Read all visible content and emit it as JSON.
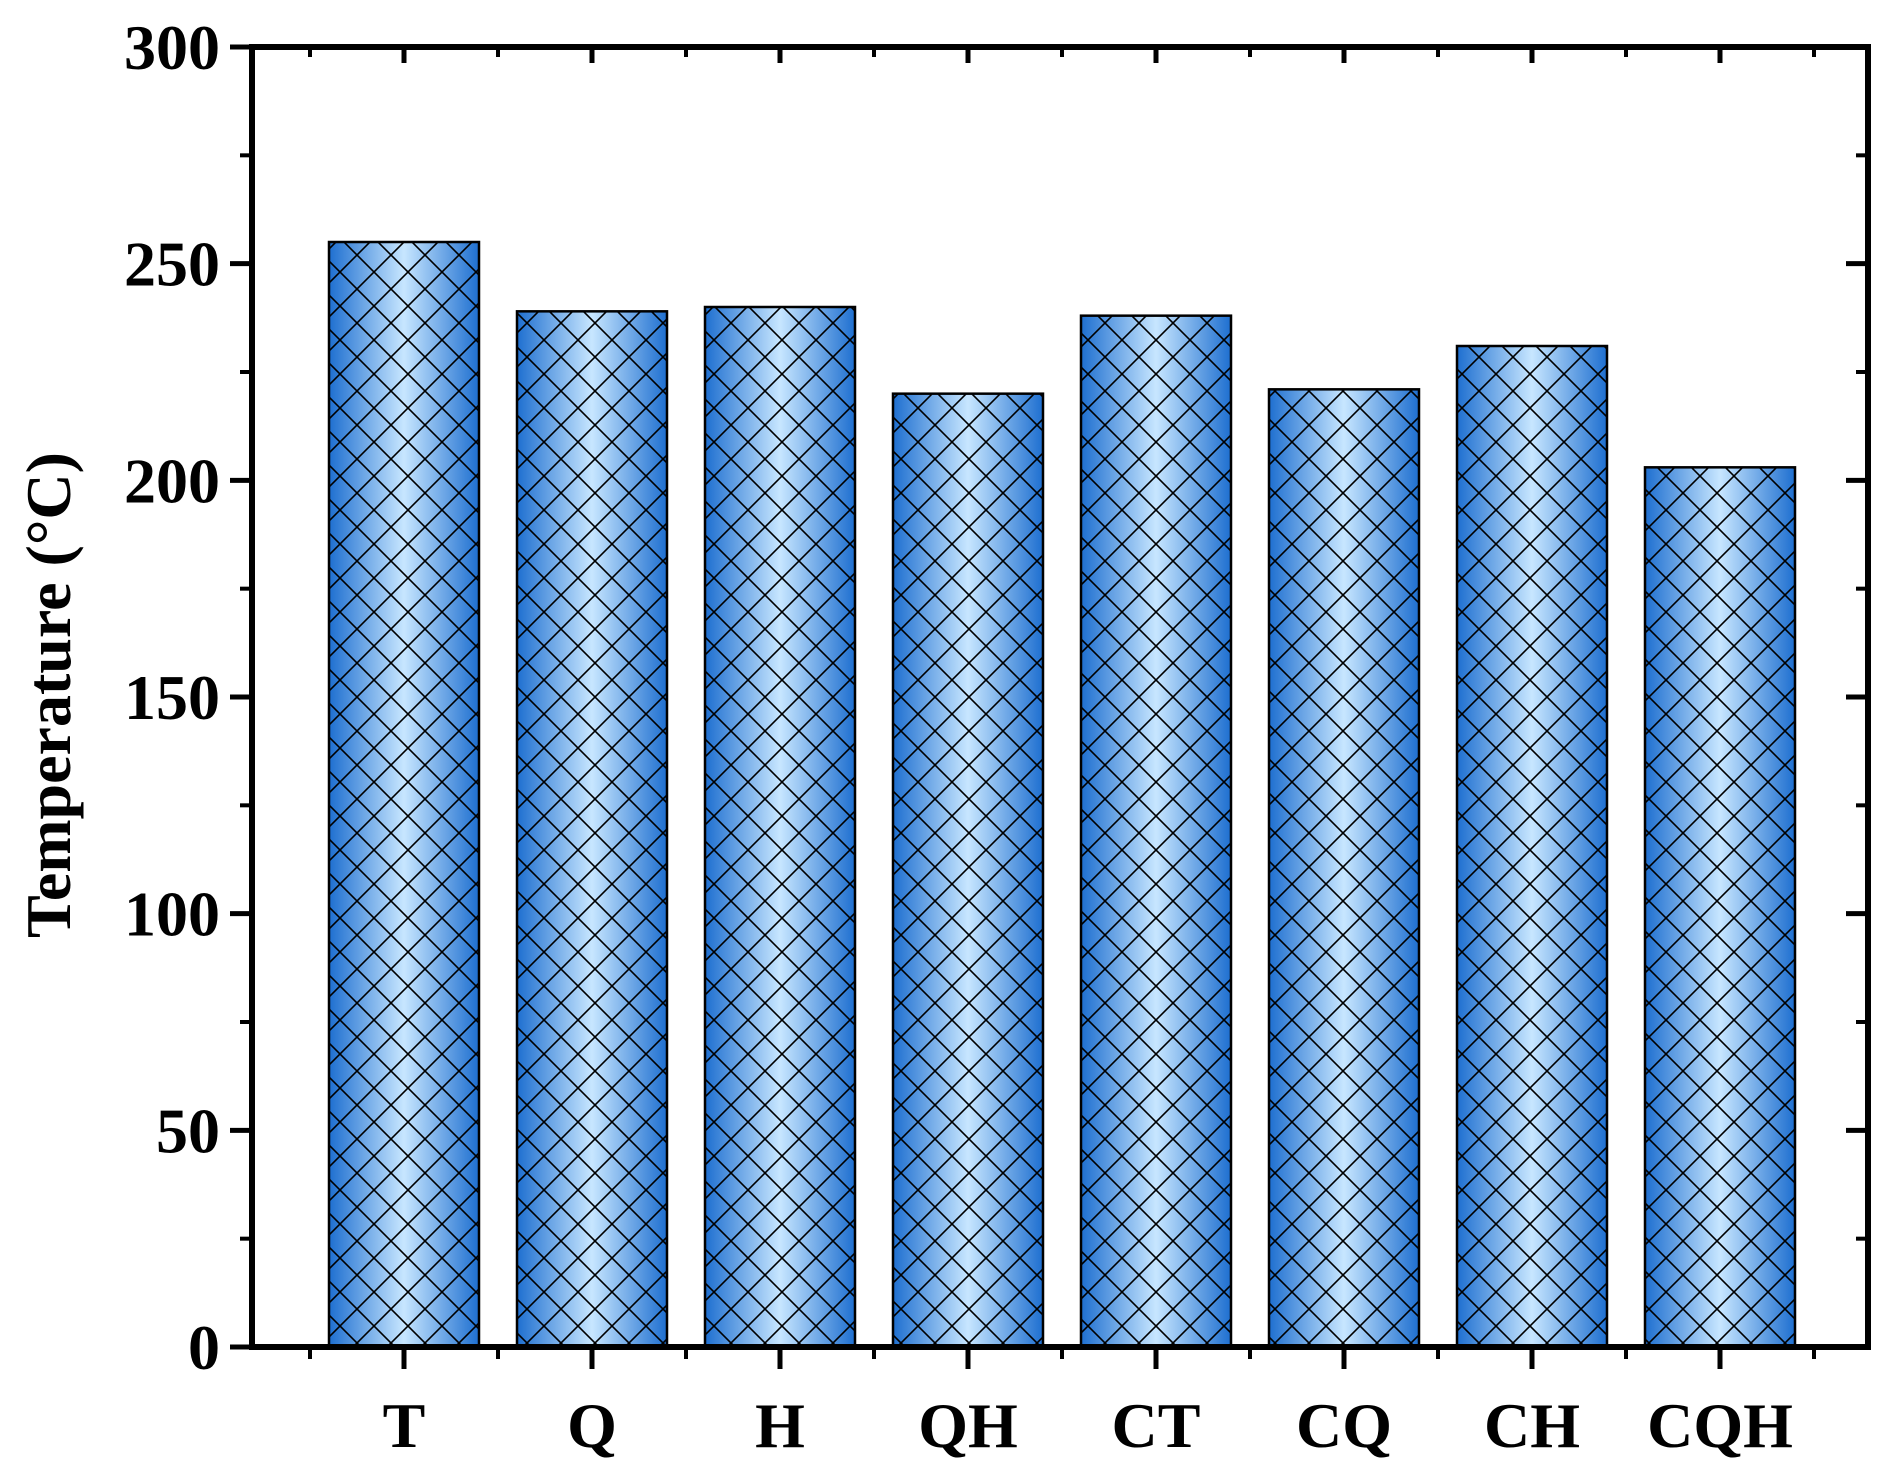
{
  "chart_data": {
    "type": "bar",
    "title": "",
    "xlabel": "",
    "ylabel": "Temperature (°C)",
    "categories": [
      "T",
      "Q",
      "H",
      "QH",
      "CT",
      "CQ",
      "CH",
      "CQH"
    ],
    "values": [
      255,
      239,
      240,
      220,
      238,
      221,
      231,
      203
    ],
    "ylim": [
      0,
      300
    ],
    "yticks": [
      "0",
      "50",
      "100",
      "150",
      "200",
      "250",
      "300"
    ],
    "grid": false,
    "legend": "none",
    "bar_fill": "cross-hatch over horizontal blue gradient",
    "colors": {
      "bar_edge": "#1E6FD0",
      "bar_center": "#C7E6FF",
      "hatch": "#000000",
      "axis": "#000000"
    }
  }
}
